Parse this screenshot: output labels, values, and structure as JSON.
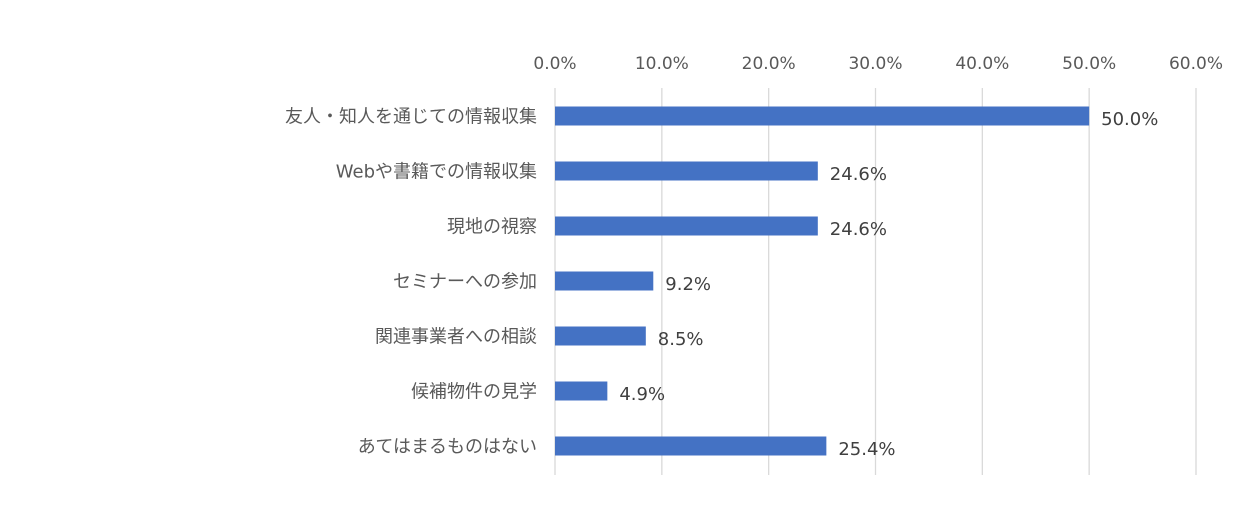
{
  "chart_data": {
    "type": "bar",
    "orientation": "horizontal",
    "title": "",
    "xlabel": "",
    "ylabel": "",
    "categories": [
      "友人・知人を通じての情報収集",
      "Webや書籍での情報収集",
      "現地の視察",
      "セミナーへの参加",
      "関連事業者への相談",
      "候補物件の見学",
      "あてはまるものはない"
    ],
    "values": [
      50.0,
      24.6,
      24.6,
      9.2,
      8.5,
      4.9,
      25.4
    ],
    "value_labels": [
      "50.0%",
      "24.6%",
      "24.6%",
      "9.2%",
      "8.5%",
      "4.9%",
      "25.4%"
    ],
    "xlim": [
      0,
      60
    ],
    "ticks": [
      0,
      10,
      20,
      30,
      40,
      50,
      60
    ],
    "tick_labels": [
      "0.0%",
      "10.0%",
      "20.0%",
      "30.0%",
      "40.0%",
      "50.0%",
      "60.0%"
    ],
    "axis_position": "top",
    "grid": true,
    "legend": "none",
    "bar_color": "#4472c4"
  }
}
